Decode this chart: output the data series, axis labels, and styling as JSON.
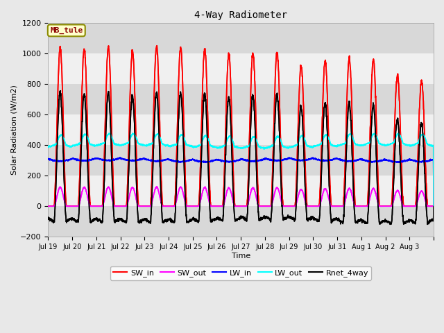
{
  "title": "4-Way Radiometer",
  "xlabel": "Time",
  "ylabel": "Solar Radiation (W/m2)",
  "ylim": [
    -200,
    1200
  ],
  "n_days": 16,
  "xtick_labels": [
    "Jul 19",
    "Jul 20",
    "Jul 21",
    "Jul 22",
    "Jul 23",
    "Jul 24",
    "Jul 25",
    "Jul 26",
    "Jul 27",
    "Jul 28",
    "Jul 29",
    "Jul 30",
    "Jul 31",
    "Aug 1",
    "Aug 2",
    "Aug 3"
  ],
  "site_label": "MB_tule",
  "fig_facecolor": "#e8e8e8",
  "axes_facecolor": "#e8e8e8",
  "grid_color": "#ffffff",
  "series": {
    "SW_in": {
      "color": "#ff0000",
      "lw": 1.2
    },
    "SW_out": {
      "color": "#ff00ff",
      "lw": 1.2
    },
    "LW_in": {
      "color": "#0000ff",
      "lw": 1.2
    },
    "LW_out": {
      "color": "#00ffff",
      "lw": 1.2
    },
    "Rnet_4way": {
      "color": "#000000",
      "lw": 1.2
    }
  },
  "legend_names": [
    "SW_in",
    "SW_out",
    "LW_in",
    "LW_out",
    "Rnet_4way"
  ],
  "legend_colors": [
    "#ff0000",
    "#ff00ff",
    "#0000ff",
    "#00ffff",
    "#000000"
  ],
  "sw_in_peaks": [
    1035,
    1025,
    1040,
    1020,
    1045,
    1040,
    1030,
    995,
    1000,
    1010,
    920,
    950,
    970,
    960,
    860,
    820
  ],
  "lw_out_base": 400,
  "lw_in_base": 310,
  "rnet_night": -100
}
